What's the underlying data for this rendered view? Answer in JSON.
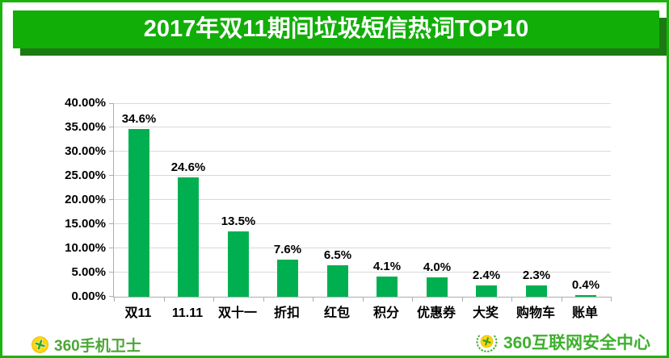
{
  "page": {
    "title": "2017年双11期间垃圾短信热词TOP10"
  },
  "chart_data": {
    "type": "bar",
    "title": "2017年双11期间垃圾短信热词TOP10",
    "categories": [
      "双11",
      "11.11",
      "双十一",
      "折扣",
      "红包",
      "积分",
      "优惠券",
      "大奖",
      "购物车",
      "账单"
    ],
    "values": [
      34.6,
      24.6,
      13.5,
      7.6,
      6.5,
      4.1,
      4.0,
      2.4,
      2.3,
      0.4
    ],
    "value_labels": [
      "34.6%",
      "24.6%",
      "13.5%",
      "7.6%",
      "6.5%",
      "4.1%",
      "4.0%",
      "2.4%",
      "2.3%",
      "0.4%"
    ],
    "xlabel": "",
    "ylabel": "",
    "ylim": [
      0,
      40
    ],
    "ytick_step": 5,
    "ytick_labels": [
      "0.00%",
      "5.00%",
      "10.00%",
      "15.00%",
      "20.00%",
      "25.00%",
      "30.00%",
      "35.00%",
      "40.00%"
    ],
    "grid": true,
    "legend": "none",
    "bar_color": "#00b050"
  },
  "footer": {
    "left_brand": "360手机卫士",
    "right_brand": "360互联网安全中心"
  },
  "colors": {
    "border_green": "#1bb30d",
    "banner_green": "#12ae08",
    "banner_shadow_green": "#1b7a12",
    "bar_green": "#00b050",
    "gridline_gray": "#d9d9d9",
    "footer_left_green": "#4ca637",
    "footer_right_green": "#3eb02e",
    "logo_yellow": "#ffd60a"
  }
}
